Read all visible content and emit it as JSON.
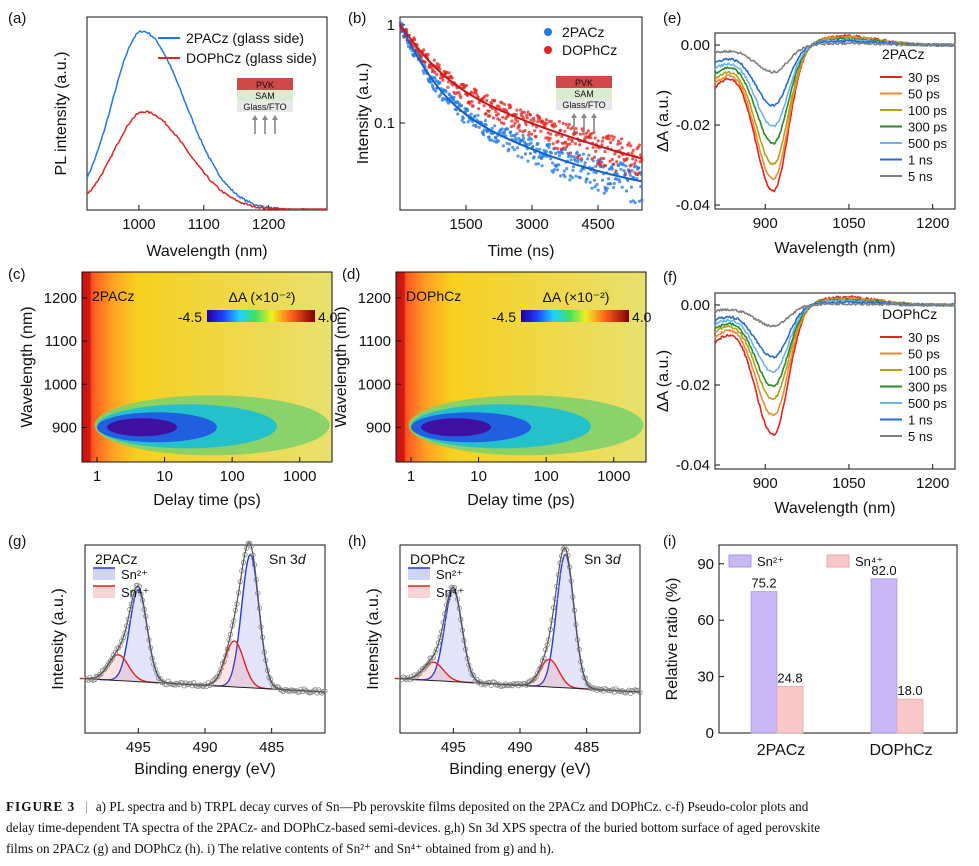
{
  "figure": {
    "caption": {
      "label": "FIGURE 3",
      "separator": "|",
      "line1": "a) PL spectra and b) TRPL decay curves of Sn—Pb perovskite films deposited on the 2PACz and DOPhCz. c-f) Pseudo-color plots and",
      "line2": "delay time-dependent TA spectra of the 2PACz- and DOPhCz-based semi-devices. g,h) Sn 3d XPS spectra of the buried bottom surface of aged perovskite",
      "line3": "films on 2PACz (g) and DOPhCz (h). i) The relative contents of Sn²⁺ and Sn⁴⁺ obtained from g) and h)."
    },
    "colors": {
      "blue": "#1f78e6",
      "red": "#e5231f",
      "orange": "#f58a2a",
      "olive": "#b0a21a",
      "green": "#2a8a2a",
      "lightblue": "#6ab4ee",
      "darkblue": "#2a6ad8",
      "gray": "#808080",
      "violet": "#c8b8f5",
      "pink": "#f8c8c8"
    },
    "device_stack": {
      "top": "PVK",
      "mid": "SAM",
      "bottom": "Glass/FTO"
    }
  },
  "chart_data": [
    {
      "panel": "(a)",
      "type": "line",
      "xlabel": "Wavelength (nm)",
      "ylabel": "PL intensity (a.u.)",
      "xlim": [
        920,
        1290
      ],
      "ylim": [
        0,
        1.08
      ],
      "xticks": [
        1000,
        1100,
        1200
      ],
      "series": [
        {
          "name": "2PACz (glass side)",
          "color": "#1f78e6",
          "peak": 1005,
          "amplitude": 1.0,
          "width_left": 46,
          "width_right": 66
        },
        {
          "name": "DOPhCz (glass side)",
          "color": "#e5231f",
          "peak": 1008,
          "amplitude": 0.55,
          "width_left": 46,
          "width_right": 66
        }
      ]
    },
    {
      "panel": "(b)",
      "type": "scatter",
      "xlabel": "Time (ns)",
      "ylabel": "Intensity (a.u.)",
      "yscale": "log",
      "xlim": [
        0,
        5500
      ],
      "ylim": [
        0.013,
        1.2
      ],
      "xticks": [
        1500,
        3000,
        4500
      ],
      "yticks": [
        0.1,
        1
      ],
      "yticklabels": [
        "0.1",
        "1"
      ],
      "series": [
        {
          "name": "2PACz",
          "color": "#1f78e6",
          "tau1": 400,
          "tau2": 1800,
          "a1": 0.8,
          "a2": 0.2,
          "floor": 0.016
        },
        {
          "name": "DOPhCz",
          "color": "#e5231f",
          "tau1": 500,
          "tau2": 2300,
          "a1": 0.7,
          "a2": 0.3,
          "floor": 0.016
        }
      ]
    },
    {
      "panel": "(c)",
      "type": "heatmap",
      "label": "2PACz",
      "xlabel": "Delay time (ps)",
      "ylabel": "Wavelength (nm)",
      "xscale": "log",
      "xlim": [
        0.6,
        3000
      ],
      "ylim": [
        820,
        1260
      ],
      "xticks": [
        1,
        10,
        100,
        1000
      ],
      "yticks": [
        900,
        1000,
        1100,
        1200
      ],
      "colorbar": {
        "label": "ΔA (×10⁻²)",
        "min": "-4.5",
        "max": "4.0"
      }
    },
    {
      "panel": "(d)",
      "type": "heatmap",
      "label": "DOPhCz",
      "xlabel": "Delay time (ps)",
      "ylabel": "Wavelength (nm)",
      "xscale": "log",
      "xlim": [
        0.6,
        3000
      ],
      "ylim": [
        820,
        1260
      ],
      "xticks": [
        1,
        10,
        100,
        1000
      ],
      "yticks": [
        900,
        1000,
        1100,
        1200
      ],
      "colorbar": {
        "label": "ΔA (×10⁻²)",
        "min": "-4.5",
        "max": "4.0"
      }
    },
    {
      "panel": "(e)",
      "type": "line",
      "label": "2PACz",
      "xlabel": "Wavelength (nm)",
      "ylabel": "ΔA (a.u.)",
      "xlim": [
        810,
        1240
      ],
      "ylim": [
        -0.041,
        0.003
      ],
      "xticks": [
        900,
        1050,
        1200
      ],
      "yticks": [
        0,
        -0.02,
        -0.04
      ],
      "yticklabels": [
        "0.00",
        "-0.02",
        "-0.04"
      ],
      "series": [
        {
          "name": "30 ps",
          "color": "#e5231f",
          "depth": 0.035
        },
        {
          "name": "50 ps",
          "color": "#f58a2a",
          "depth": 0.032
        },
        {
          "name": "100 ps",
          "color": "#b0a21a",
          "depth": 0.0285
        },
        {
          "name": "300 ps",
          "color": "#2a8a2a",
          "depth": 0.0235
        },
        {
          "name": "500 ps",
          "color": "#6ab4ee",
          "depth": 0.0195
        },
        {
          "name": "1 ns",
          "color": "#2a6ad8",
          "depth": 0.0145
        },
        {
          "name": "5 ns",
          "color": "#808080",
          "depth": 0.0065
        }
      ]
    },
    {
      "panel": "(f)",
      "type": "line",
      "label": "DOPhCz",
      "xlabel": "Wavelength (nm)",
      "ylabel": "ΔA (a.u.)",
      "xlim": [
        810,
        1240
      ],
      "ylim": [
        -0.041,
        0.003
      ],
      "xticks": [
        900,
        1050,
        1200
      ],
      "yticks": [
        0,
        -0.02,
        -0.04
      ],
      "yticklabels": [
        "0.00",
        "-0.02",
        "-0.04"
      ],
      "series": [
        {
          "name": "30 ps",
          "color": "#e5231f",
          "depth": 0.031
        },
        {
          "name": "50 ps",
          "color": "#f58a2a",
          "depth": 0.0265
        },
        {
          "name": "100 ps",
          "color": "#b0a21a",
          "depth": 0.0225
        },
        {
          "name": "300 ps",
          "color": "#2a8a2a",
          "depth": 0.0195
        },
        {
          "name": "500 ps",
          "color": "#6ab4ee",
          "depth": 0.016
        },
        {
          "name": "1 ns",
          "color": "#2a6ad8",
          "depth": 0.0125
        },
        {
          "name": "5 ns",
          "color": "#808080",
          "depth": 0.005
        }
      ]
    },
    {
      "panel": "(g)",
      "type": "line",
      "label": "2PACz",
      "annotation": "Sn 3d",
      "xlabel": "Binding energy (eV)",
      "ylabel": "Intensity (a.u.)",
      "xlim": [
        499,
        481
      ],
      "xticks": [
        495,
        490,
        485
      ],
      "legend": [
        "Sn²⁺",
        "Sn⁴⁺"
      ],
      "peaks": [
        {
          "species": "Sn2+",
          "center": 495.0,
          "height": 1.0,
          "width": 0.65,
          "color": "#1f3ae6"
        },
        {
          "species": "Sn4+",
          "center": 496.5,
          "height": 0.28,
          "width": 0.75,
          "color": "#e5231f"
        },
        {
          "species": "Sn2+",
          "center": 486.6,
          "height": 1.45,
          "width": 0.65,
          "color": "#1f3ae6"
        },
        {
          "species": "Sn4+",
          "center": 487.8,
          "height": 0.5,
          "width": 0.7,
          "color": "#e5231f"
        }
      ]
    },
    {
      "panel": "(h)",
      "type": "line",
      "label": "DOPhCz",
      "annotation": "Sn 3d",
      "xlabel": "Binding energy (eV)",
      "ylabel": "Intensity (a.u.)",
      "xlim": [
        499,
        481
      ],
      "xticks": [
        495,
        490,
        485
      ],
      "legend": [
        "Sn²⁺",
        "Sn⁴⁺"
      ],
      "peaks": [
        {
          "species": "Sn2+",
          "center": 495.0,
          "height": 1.0,
          "width": 0.65,
          "color": "#1f3ae6"
        },
        {
          "species": "Sn4+",
          "center": 496.5,
          "height": 0.2,
          "width": 0.75,
          "color": "#e5231f"
        },
        {
          "species": "Sn2+",
          "center": 486.6,
          "height": 1.45,
          "width": 0.65,
          "color": "#1f3ae6"
        },
        {
          "species": "Sn4+",
          "center": 487.8,
          "height": 0.3,
          "width": 0.7,
          "color": "#e5231f"
        }
      ]
    },
    {
      "panel": "(i)",
      "type": "bar",
      "xlabel": "",
      "ylabel": "Relative ratio (%)",
      "categories": [
        "2PACz",
        "DOPhCz"
      ],
      "ylim": [
        0,
        100
      ],
      "yticks": [
        0,
        30,
        60,
        90
      ],
      "series": [
        {
          "name": "Sn²⁺",
          "color": "#c8b8f5",
          "values": [
            75.2,
            82.0
          ],
          "labels": [
            "75.2",
            "82.0"
          ]
        },
        {
          "name": "Sn⁴⁺",
          "color": "#f8c8c8",
          "values": [
            24.8,
            18.0
          ],
          "labels": [
            "24.8",
            "18.0"
          ]
        }
      ]
    }
  ]
}
